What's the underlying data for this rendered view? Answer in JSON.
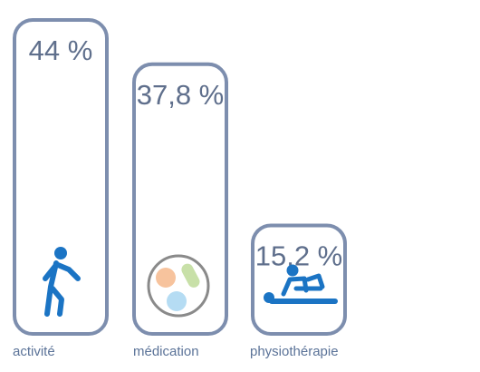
{
  "chart_data": {
    "type": "bar",
    "categories": [
      "activité",
      "médication",
      "physiothérapie"
    ],
    "values": [
      44,
      37.8,
      15.2
    ],
    "value_labels": [
      "44 %",
      "37,8 %",
      "15,2 %"
    ],
    "icons": [
      "walking-person-icon",
      "pills-icon",
      "physiotherapy-icon"
    ],
    "ylim": [
      0,
      44
    ],
    "grid": false,
    "legend": "none"
  },
  "colors": {
    "bar_outline": "#7d8eae",
    "value_text": "#5f6f8c",
    "category_text": "#5b7398",
    "icon_blue": "#1b74c4",
    "pill_orange": "#f7c39d",
    "pill_green": "#c8e0a8",
    "pill_blue": "#b5dcf3",
    "pill_ring": "#8a8a8a"
  }
}
